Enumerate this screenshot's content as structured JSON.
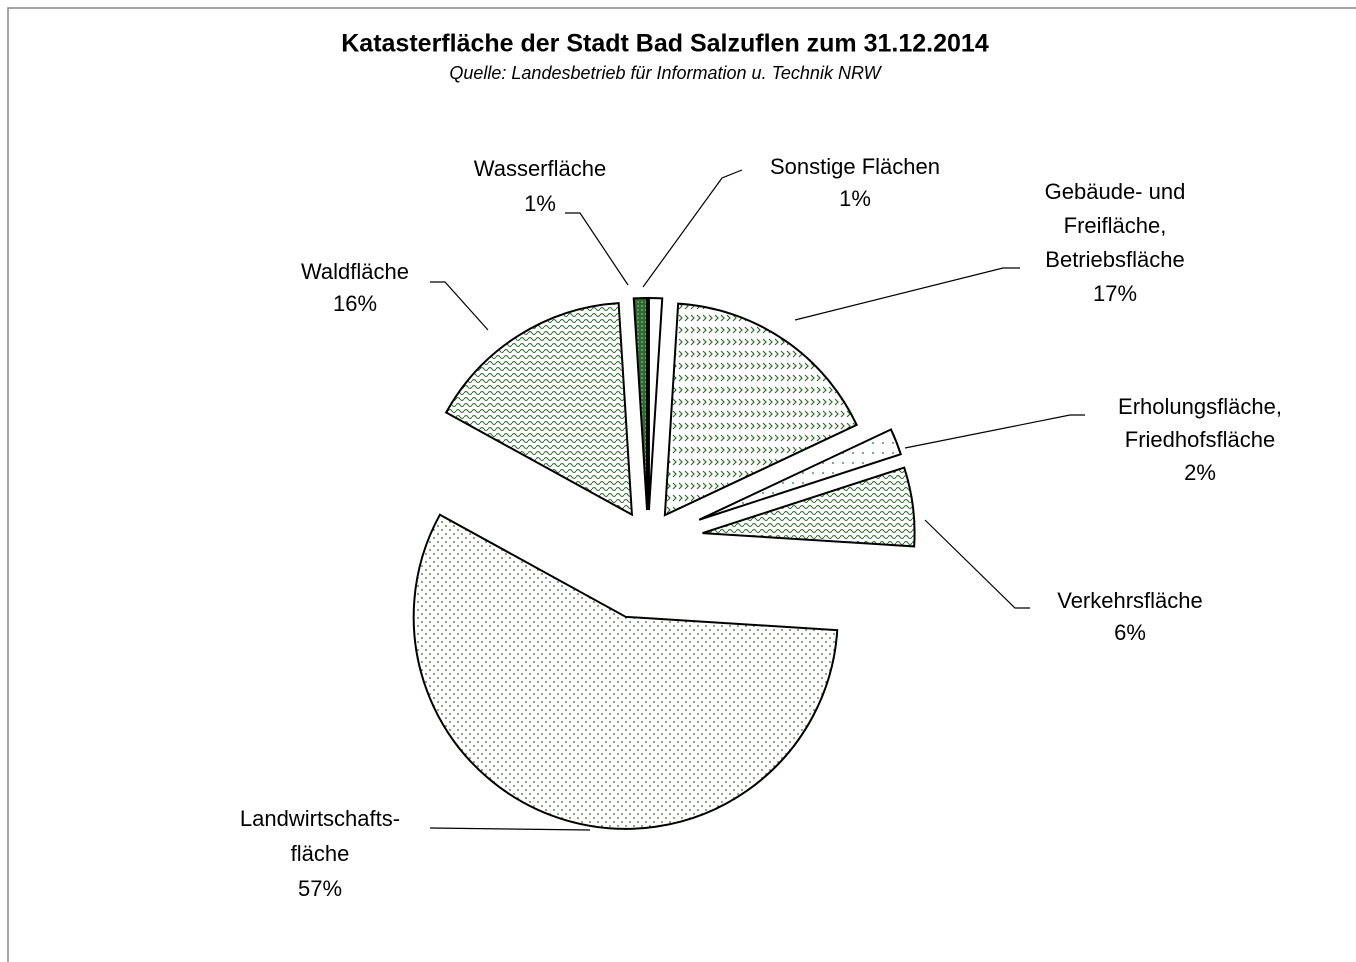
{
  "chart_data": {
    "type": "pie",
    "title": "Katasterfläche der Stadt Bad Salzuflen zum 31.12.2014",
    "subtitle": "Quelle: Landesbetrieb für Information u. Technik NRW",
    "categories": [
      [
        "Sonstige Flächen"
      ],
      [
        "Gebäude- und",
        "Freifläche,",
        "Betriebsfläche"
      ],
      [
        "Erholungsfläche,",
        "Friedhofsfläche"
      ],
      [
        "Verkehrsfläche"
      ],
      [
        "Landwirtschafts-",
        "fläche"
      ],
      [
        "Waldfläche"
      ],
      [
        "Wasserfläche"
      ]
    ],
    "values": [
      1,
      17,
      2,
      6,
      57,
      16,
      1
    ],
    "value_labels": [
      "1%",
      "17%",
      "2%",
      "6%",
      "57%",
      "16%",
      "1%"
    ],
    "color": "#2f6b2f"
  }
}
